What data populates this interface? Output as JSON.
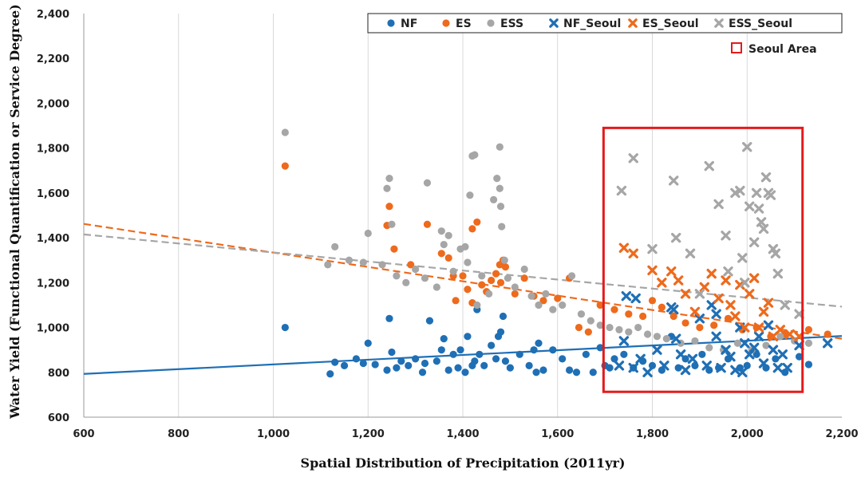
{
  "chart_data": {
    "type": "scatter",
    "title": "",
    "xlabel": "Spatial Distribution of Precipitation (2011yr)",
    "ylabel": "Water Yield (Functional Quantification or Service Degree)",
    "xlim": [
      600,
      2200
    ],
    "ylim": [
      600,
      2400
    ],
    "x_ticks": [
      "600",
      "800",
      "1,000",
      "1,200",
      "1,400",
      "1,600",
      "1,800",
      "2,000",
      "2,200"
    ],
    "y_ticks": [
      "600",
      "800",
      "1,000",
      "1,200",
      "1,400",
      "1,600",
      "1,800",
      "2,000",
      "2,200",
      "2,400"
    ],
    "grid": "vertical",
    "legend_position": "top-right",
    "colors": {
      "NF": "#1f6fb5",
      "ES": "#ee6a1c",
      "ESS": "#a6a6a6",
      "box": "#e41a1c"
    },
    "series": [
      {
        "name": "NF",
        "marker": "circle",
        "color": "#1f6fb5",
        "x": [
          1025,
          1120,
          1130,
          1150,
          1175,
          1190,
          1200,
          1215,
          1240,
          1245,
          1250,
          1260,
          1270,
          1285,
          1300,
          1315,
          1330,
          1345,
          1355,
          1360,
          1370,
          1380,
          1390,
          1395,
          1405,
          1410,
          1420,
          1425,
          1435,
          1445,
          1460,
          1470,
          1480,
          1490,
          1500,
          1520,
          1540,
          1555,
          1560,
          1570,
          1590,
          1610,
          1625,
          1640,
          1660,
          1675,
          1690,
          1700,
          1710,
          1720,
          1740,
          1760,
          1780,
          1800,
          1820,
          1840,
          1855,
          1870,
          1890,
          1905,
          1920,
          1940,
          1960,
          1985,
          2000,
          2020,
          2040,
          2060,
          2080,
          2110,
          2130,
          1320,
          1430,
          1475,
          1485,
          1550
        ],
        "y": [
          1000,
          793,
          845,
          830,
          860,
          840,
          930,
          835,
          810,
          1040,
          890,
          820,
          850,
          830,
          860,
          800,
          1030,
          850,
          900,
          950,
          810,
          880,
          820,
          900,
          800,
          960,
          830,
          850,
          880,
          830,
          920,
          860,
          980,
          850,
          820,
          880,
          830,
          800,
          930,
          810,
          900,
          860,
          810,
          800,
          880,
          800,
          910,
          830,
          820,
          860,
          880,
          820,
          850,
          830,
          810,
          960,
          820,
          860,
          830,
          880,
          810,
          820,
          860,
          820,
          830,
          880,
          820,
          860,
          800,
          870,
          835,
          840,
          1080,
          960,
          1050,
          900
        ]
      },
      {
        "name": "ES",
        "marker": "circle",
        "color": "#ee6a1c",
        "x": [
          1025,
          1240,
          1245,
          1255,
          1290,
          1325,
          1355,
          1370,
          1385,
          1400,
          1410,
          1420,
          1430,
          1440,
          1450,
          1460,
          1470,
          1478,
          1485,
          1490,
          1510,
          1530,
          1550,
          1570,
          1600,
          1625,
          1645,
          1665,
          1690,
          1720,
          1750,
          1780,
          1800,
          1820,
          1845,
          1870,
          1900,
          1930,
          1960,
          1990,
          2020,
          2050,
          2080,
          2130,
          2170,
          1380,
          1480,
          1420
        ],
        "y": [
          1720,
          1455,
          1540,
          1350,
          1280,
          1460,
          1330,
          1310,
          1120,
          1230,
          1170,
          1110,
          1470,
          1190,
          1160,
          1210,
          1240,
          1280,
          1300,
          1270,
          1150,
          1220,
          1140,
          1120,
          1130,
          1220,
          1000,
          980,
          1100,
          1080,
          1060,
          1050,
          1120,
          1090,
          1050,
          1020,
          1000,
          1010,
          1040,
          990,
          1000,
          960,
          970,
          990,
          970,
          1230,
          1200,
          1440
        ]
      },
      {
        "name": "ESS",
        "marker": "circle",
        "color": "#a6a6a6",
        "x": [
          1025,
          1115,
          1130,
          1160,
          1190,
          1200,
          1230,
          1240,
          1245,
          1250,
          1260,
          1280,
          1300,
          1320,
          1325,
          1345,
          1355,
          1360,
          1370,
          1380,
          1395,
          1410,
          1415,
          1420,
          1430,
          1440,
          1455,
          1465,
          1472,
          1478,
          1482,
          1488,
          1495,
          1510,
          1530,
          1545,
          1560,
          1575,
          1590,
          1610,
          1630,
          1650,
          1670,
          1690,
          1710,
          1730,
          1750,
          1770,
          1790,
          1810,
          1830,
          1860,
          1890,
          1920,
          1950,
          1980,
          2010,
          2040,
          2070,
          2100,
          2130,
          1425,
          1478,
          1480,
          1405
        ],
        "y": [
          1870,
          1280,
          1360,
          1300,
          1290,
          1420,
          1280,
          1620,
          1665,
          1460,
          1230,
          1200,
          1260,
          1220,
          1645,
          1180,
          1430,
          1370,
          1410,
          1250,
          1350,
          1290,
          1590,
          1765,
          1100,
          1230,
          1150,
          1570,
          1665,
          1620,
          1450,
          1300,
          1220,
          1180,
          1260,
          1140,
          1100,
          1150,
          1080,
          1100,
          1230,
          1060,
          1030,
          1010,
          1000,
          990,
          980,
          1000,
          970,
          960,
          950,
          930,
          940,
          910,
          900,
          930,
          900,
          920,
          960,
          940,
          930,
          1770,
          1805,
          1540,
          1360
        ]
      },
      {
        "name": "NF_Seoul",
        "marker": "x",
        "color": "#1f6fb5",
        "x": [
          1730,
          1745,
          1760,
          1775,
          1790,
          1810,
          1825,
          1840,
          1850,
          1860,
          1870,
          1885,
          1900,
          1915,
          1925,
          1935,
          1945,
          1955,
          1965,
          1975,
          1985,
          1995,
          2005,
          2015,
          2025,
          2035,
          2045,
          2055,
          2065,
          2075,
          2085,
          2110,
          2170,
          1740,
          1765,
          1845,
          1935,
          1990
        ],
        "y": [
          830,
          1140,
          820,
          860,
          800,
          900,
          830,
          1090,
          950,
          880,
          810,
          860,
          1040,
          830,
          1100,
          960,
          820,
          900,
          870,
          810,
          1000,
          930,
          880,
          910,
          960,
          840,
          1010,
          900,
          820,
          880,
          820,
          920,
          930,
          940,
          1130,
          1080,
          1060,
          800
        ]
      },
      {
        "name": "ES_Seoul",
        "marker": "x",
        "color": "#ee6a1c",
        "x": [
          1740,
          1760,
          1800,
          1820,
          1840,
          1855,
          1870,
          1890,
          1910,
          1925,
          1940,
          1955,
          1965,
          1975,
          1985,
          1995,
          2005,
          2015,
          2025,
          2035,
          2045,
          2055,
          2070,
          2090,
          2110
        ],
        "y": [
          1355,
          1330,
          1255,
          1200,
          1250,
          1210,
          1150,
          1070,
          1180,
          1240,
          1130,
          1210,
          1100,
          1050,
          1190,
          1000,
          1150,
          1220,
          1000,
          1070,
          1110,
          960,
          990,
          970,
          960
        ]
      },
      {
        "name": "ESS_Seoul",
        "marker": "x",
        "color": "#a6a6a6",
        "x": [
          1735,
          1760,
          1800,
          1845,
          1850,
          1880,
          1920,
          1940,
          1955,
          1975,
          1985,
          1990,
          2000,
          2005,
          2015,
          2020,
          2025,
          2030,
          2035,
          2040,
          2045,
          2050,
          2055,
          2060,
          2065,
          2080,
          2110,
          1900,
          1960,
          1995
        ],
        "y": [
          1610,
          1755,
          1350,
          1655,
          1400,
          1330,
          1720,
          1550,
          1410,
          1600,
          1610,
          1310,
          1805,
          1540,
          1380,
          1600,
          1530,
          1470,
          1440,
          1670,
          1600,
          1590,
          1350,
          1330,
          1240,
          1100,
          1060,
          1150,
          1250,
          1200
        ]
      }
    ],
    "trendlines": [
      {
        "series": "NF",
        "style": "solid",
        "color": "#1f6fb5",
        "x": [
          600,
          2200
        ],
        "y": [
          793,
          962
        ]
      },
      {
        "series": "ES",
        "style": "dashed",
        "color": "#ee6a1c",
        "x": [
          600,
          2200
        ],
        "y": [
          1462,
          950
        ]
      },
      {
        "series": "ESS",
        "style": "dashed",
        "color": "#a6a6a6",
        "x": [
          600,
          2200
        ],
        "y": [
          1415,
          1093
        ]
      }
    ],
    "annotation_box": {
      "label": "Seoul Area",
      "x_range": [
        1697,
        2117
      ],
      "y_range": [
        713,
        1890
      ]
    }
  }
}
